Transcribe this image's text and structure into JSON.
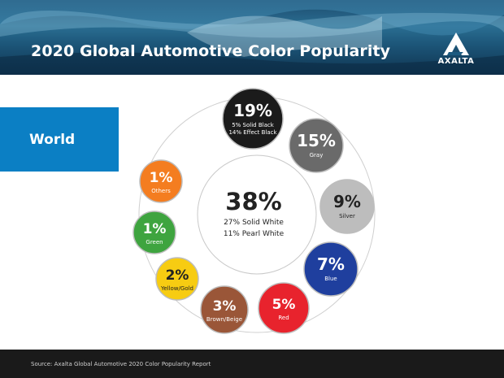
{
  "header": {
    "title": "2020 Global Automotive Color Popularity",
    "logo_text": "AXALTA"
  },
  "region_label": "World",
  "footer": {
    "source": "Source: Axalta Global Automotive 2020 Color Popularity Report"
  },
  "center": {
    "value": "38%",
    "line1": "27% Solid White",
    "line2": "11% Pearl White"
  },
  "colors": {
    "black": "#1b1b1b",
    "gray": "#6a6a6a",
    "silver": "#bdbdbd",
    "blue": "#1f3f9e",
    "red": "#e8232d",
    "brown": "#9a5638",
    "yellow": "#f7cc12",
    "green": "#3ea43f",
    "others": "#f47d20",
    "region_bg": "#0b7fc4"
  },
  "chart_data": {
    "type": "pie",
    "title": "2020 Global Automotive Color Popularity",
    "region": "World",
    "slices": [
      {
        "label": "White",
        "value": 38,
        "display": "38%",
        "details": [
          "27% Solid White",
          "11% Pearl White"
        ]
      },
      {
        "label": "Black",
        "value": 19,
        "display": "19%",
        "details": [
          "5% Solid Black",
          "14% Effect Black"
        ],
        "color": "#1b1b1b"
      },
      {
        "label": "Gray",
        "value": 15,
        "display": "15%",
        "details": [
          "Gray"
        ],
        "color": "#6a6a6a"
      },
      {
        "label": "Silver",
        "value": 9,
        "display": "9%",
        "details": [
          "Silver"
        ],
        "color": "#bdbdbd"
      },
      {
        "label": "Blue",
        "value": 7,
        "display": "7%",
        "details": [
          "Blue"
        ],
        "color": "#1f3f9e"
      },
      {
        "label": "Red",
        "value": 5,
        "display": "5%",
        "details": [
          "Red"
        ],
        "color": "#e8232d"
      },
      {
        "label": "Brown/Beige",
        "value": 3,
        "display": "3%",
        "details": [
          "Brown/Beige"
        ],
        "color": "#9a5638"
      },
      {
        "label": "Yellow/Gold",
        "value": 2,
        "display": "2%",
        "details": [
          "Yellow/Gold"
        ],
        "color": "#f7cc12"
      },
      {
        "label": "Green",
        "value": 1,
        "display": "1%",
        "details": [
          "Green"
        ],
        "color": "#3ea43f"
      },
      {
        "label": "Others",
        "value": 1,
        "display": "1%",
        "details": [
          "Others"
        ],
        "color": "#f47d20"
      }
    ]
  }
}
